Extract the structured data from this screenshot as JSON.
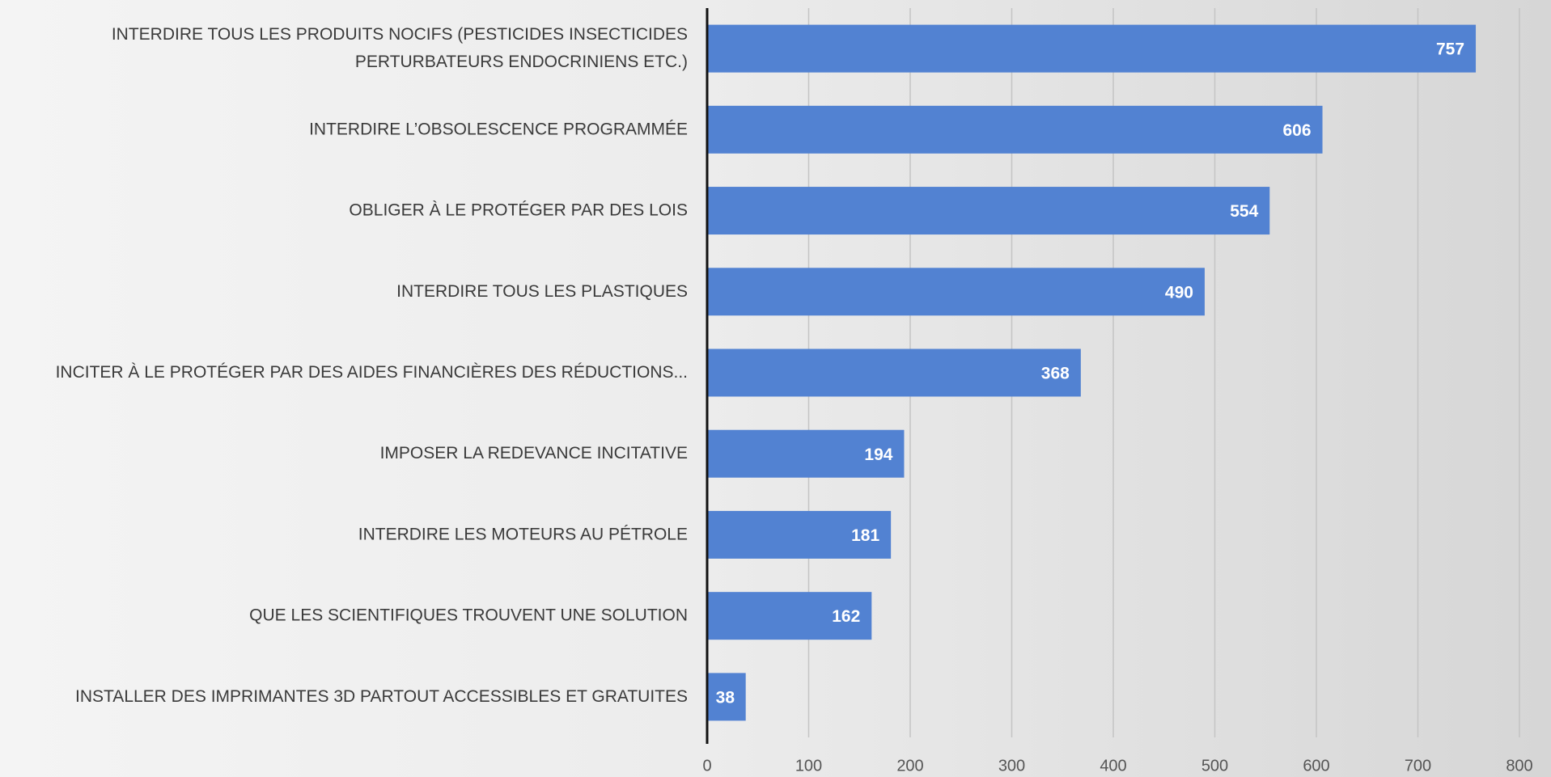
{
  "chart_data": {
    "type": "bar",
    "orientation": "horizontal",
    "categories": [
      "INTERDIRE TOUS LES PRODUITS NOCIFS (PESTICIDES  INSECTICIDES\nPERTURBATEURS ENDOCRINIENS  ETC.)",
      "INTERDIRE L’OBSOLESCENCE PROGRAMMÉE",
      "OBLIGER À LE PROTÉGER PAR DES LOIS",
      "INTERDIRE TOUS LES PLASTIQUES",
      "INCITER À LE PROTÉGER PAR DES AIDES FINANCIÈRES  DES RÉDUCTIONS...",
      "IMPOSER LA REDEVANCE INCITATIVE",
      "INTERDIRE LES MOTEURS AU PÉTROLE",
      "QUE LES SCIENTIFIQUES TROUVENT UNE SOLUTION",
      "INSTALLER DES IMPRIMANTES 3D PARTOUT  ACCESSIBLES ET GRATUITES"
    ],
    "values": [
      757,
      606,
      554,
      490,
      368,
      194,
      181,
      162,
      38
    ],
    "color": "#5282d2",
    "xlim": [
      0,
      800
    ],
    "xticks": [
      0,
      100,
      200,
      300,
      400,
      500,
      600,
      700,
      800
    ],
    "grid": true
  }
}
